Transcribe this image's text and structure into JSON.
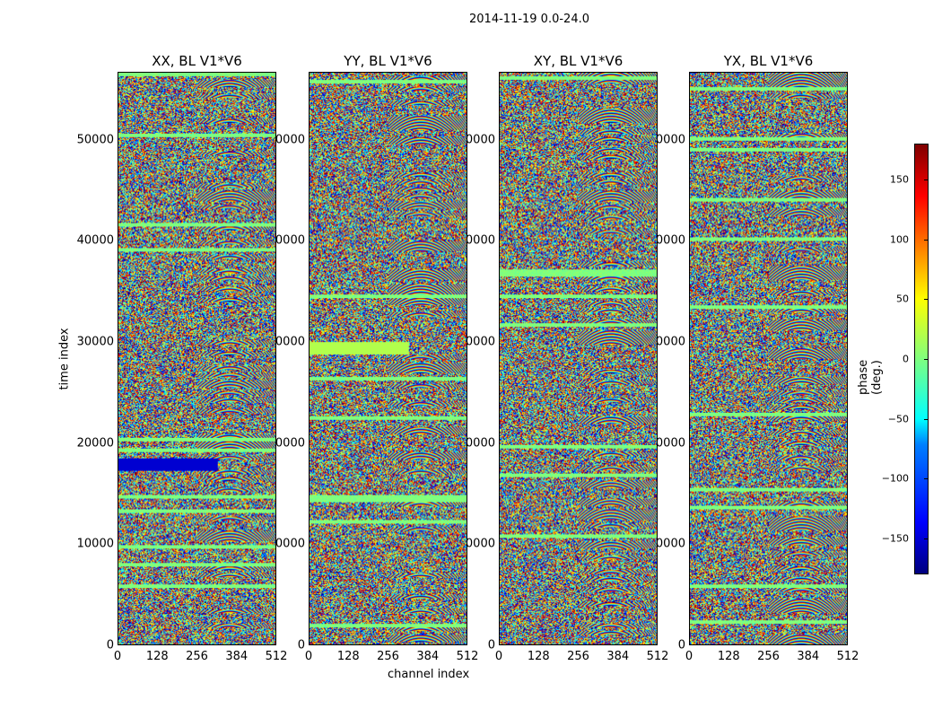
{
  "suptitle": "2014-11-19 0.0-24.0",
  "chart_data": {
    "type": "heatmap",
    "panels": [
      {
        "title": "XX, BL V1*V6"
      },
      {
        "title": "YY, BL V1*V6"
      },
      {
        "title": "XY, BL V1*V6"
      },
      {
        "title": "YX, BL V1*V6"
      }
    ],
    "xlabel": "channel index",
    "ylabel": "time index",
    "xlim": [
      0,
      512
    ],
    "ylim": [
      0,
      56700
    ],
    "xticks": [
      "0",
      "128",
      "256",
      "384",
      "512"
    ],
    "xtick_values": [
      0,
      128,
      256,
      384,
      512
    ],
    "yticks": [
      "0",
      "10000",
      "20000",
      "30000",
      "40000",
      "50000"
    ],
    "ytick_values": [
      0,
      10000,
      20000,
      30000,
      40000,
      50000
    ],
    "colorbar": {
      "label": "phase (deg.)",
      "range": [
        -180,
        180
      ],
      "ticks": [
        "−150",
        "−100",
        "−50",
        "0",
        "50",
        "100",
        "150"
      ],
      "tick_values": [
        -150,
        -100,
        -50,
        0,
        50,
        100,
        150
      ],
      "colormap": "jet"
    }
  }
}
